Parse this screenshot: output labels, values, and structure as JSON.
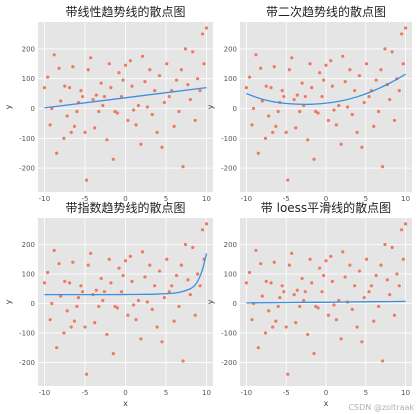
{
  "style": {
    "point_color": "#f07860",
    "trend_color": "#3a8fe0",
    "plot_bg": "#e5e5e5",
    "grid_color": "#ffffff"
  },
  "watermark": "CSDN @zoltraak",
  "chart_data": [
    {
      "type": "scatter",
      "title": "带线性趋势线的散点图",
      "xlabel": "",
      "ylabel": "y",
      "xlim": [
        -10.8,
        10.8
      ],
      "ylim": [
        -280,
        290
      ],
      "xticks": [
        -10,
        -5,
        0,
        5,
        10
      ],
      "yticks": [
        -200,
        -100,
        0,
        100,
        200
      ],
      "points": [
        [
          -10,
          70
        ],
        [
          -9.6,
          105
        ],
        [
          -9.3,
          -55
        ],
        [
          -9.1,
          0
        ],
        [
          -8.8,
          180
        ],
        [
          -8.5,
          -150
        ],
        [
          -8.2,
          135
        ],
        [
          -8,
          25
        ],
        [
          -7.6,
          -100
        ],
        [
          -7.5,
          75
        ],
        [
          -7.2,
          -25
        ],
        [
          -6.9,
          70
        ],
        [
          -6.7,
          -80
        ],
        [
          -6.5,
          140
        ],
        [
          -6.3,
          -60
        ],
        [
          -6,
          -10
        ],
        [
          -5.8,
          20
        ],
        [
          -5.5,
          60
        ],
        [
          -5.3,
          40
        ],
        [
          -5,
          -80
        ],
        [
          -4.8,
          -240
        ],
        [
          -4.6,
          130
        ],
        [
          -4.3,
          170
        ],
        [
          -4,
          30
        ],
        [
          -3.8,
          -65
        ],
        [
          -3.6,
          45
        ],
        [
          -3.3,
          -10
        ],
        [
          -3,
          85
        ],
        [
          -2.8,
          10
        ],
        [
          -2.6,
          40
        ],
        [
          -2.3,
          -105
        ],
        [
          -2,
          150
        ],
        [
          -1.8,
          70
        ],
        [
          -1.5,
          -170
        ],
        [
          -1.3,
          -10
        ],
        [
          -1,
          -15
        ],
        [
          -0.8,
          120
        ],
        [
          -0.5,
          40
        ],
        [
          -0.3,
          95
        ],
        [
          0,
          145
        ],
        [
          0.3,
          -40
        ],
        [
          0.6,
          160
        ],
        [
          0.8,
          75
        ],
        [
          1,
          -5
        ],
        [
          1.3,
          -55
        ],
        [
          1.6,
          10
        ],
        [
          1.9,
          -120
        ],
        [
          2.1,
          175
        ],
        [
          2.4,
          90
        ],
        [
          2.7,
          5
        ],
        [
          3,
          130
        ],
        [
          3.3,
          -20
        ],
        [
          3.6,
          60
        ],
        [
          3.9,
          -80
        ],
        [
          4.2,
          110
        ],
        [
          4.5,
          -130
        ],
        [
          4.8,
          20
        ],
        [
          5.1,
          150
        ],
        [
          5.4,
          40
        ],
        [
          5.7,
          60
        ],
        [
          6,
          -60
        ],
        [
          6.3,
          95
        ],
        [
          6.6,
          -10
        ],
        [
          6.9,
          130
        ],
        [
          7.1,
          -195
        ],
        [
          7.4,
          200
        ],
        [
          7.7,
          80
        ],
        [
          8,
          30
        ],
        [
          8.3,
          190
        ],
        [
          8.6,
          -40
        ],
        [
          8.9,
          100
        ],
        [
          9.2,
          60
        ],
        [
          9.5,
          250
        ],
        [
          9.7,
          150
        ],
        [
          10,
          270
        ]
      ],
      "trend": {
        "kind": "linear",
        "x": [
          -10,
          10
        ],
        "y": [
          2,
          70
        ]
      }
    },
    {
      "type": "scatter",
      "title": "带二次趋势线的散点图",
      "xlabel": "",
      "ylabel": "y",
      "xlim": [
        -10.8,
        10.8
      ],
      "ylim": [
        -280,
        290
      ],
      "xticks": [
        -10,
        -5,
        0,
        5,
        10
      ],
      "yticks": [
        -200,
        -100,
        0,
        100,
        200
      ],
      "points": [
        [
          -10,
          70
        ],
        [
          -9.6,
          105
        ],
        [
          -9.3,
          -55
        ],
        [
          -9.1,
          0
        ],
        [
          -8.8,
          180
        ],
        [
          -8.5,
          -150
        ],
        [
          -8.2,
          135
        ],
        [
          -8,
          25
        ],
        [
          -7.6,
          -100
        ],
        [
          -7.5,
          75
        ],
        [
          -7.2,
          -25
        ],
        [
          -6.9,
          70
        ],
        [
          -6.7,
          -80
        ],
        [
          -6.5,
          140
        ],
        [
          -6.3,
          -60
        ],
        [
          -6,
          -10
        ],
        [
          -5.8,
          20
        ],
        [
          -5.5,
          60
        ],
        [
          -5.3,
          40
        ],
        [
          -5,
          -80
        ],
        [
          -4.8,
          -240
        ],
        [
          -4.6,
          130
        ],
        [
          -4.3,
          170
        ],
        [
          -4,
          30
        ],
        [
          -3.8,
          -65
        ],
        [
          -3.6,
          45
        ],
        [
          -3.3,
          -10
        ],
        [
          -3,
          85
        ],
        [
          -2.8,
          10
        ],
        [
          -2.6,
          40
        ],
        [
          -2.3,
          -105
        ],
        [
          -2,
          150
        ],
        [
          -1.8,
          70
        ],
        [
          -1.5,
          -170
        ],
        [
          -1.3,
          -10
        ],
        [
          -1,
          -15
        ],
        [
          -0.8,
          120
        ],
        [
          -0.5,
          40
        ],
        [
          -0.3,
          95
        ],
        [
          0,
          145
        ],
        [
          0.3,
          -40
        ],
        [
          0.6,
          160
        ],
        [
          0.8,
          75
        ],
        [
          1,
          -5
        ],
        [
          1.3,
          -55
        ],
        [
          1.6,
          10
        ],
        [
          1.9,
          -120
        ],
        [
          2.1,
          175
        ],
        [
          2.4,
          90
        ],
        [
          2.7,
          5
        ],
        [
          3,
          130
        ],
        [
          3.3,
          -20
        ],
        [
          3.6,
          60
        ],
        [
          3.9,
          -80
        ],
        [
          4.2,
          110
        ],
        [
          4.5,
          -130
        ],
        [
          4.8,
          20
        ],
        [
          5.1,
          150
        ],
        [
          5.4,
          40
        ],
        [
          5.7,
          60
        ],
        [
          6,
          -60
        ],
        [
          6.3,
          95
        ],
        [
          6.6,
          -10
        ],
        [
          6.9,
          130
        ],
        [
          7.1,
          -195
        ],
        [
          7.4,
          200
        ],
        [
          7.7,
          80
        ],
        [
          8,
          30
        ],
        [
          8.3,
          190
        ],
        [
          8.6,
          -40
        ],
        [
          8.9,
          100
        ],
        [
          9.2,
          60
        ],
        [
          9.5,
          250
        ],
        [
          9.7,
          150
        ],
        [
          10,
          270
        ]
      ],
      "trend": {
        "kind": "quadratic",
        "x": [
          -10,
          -8,
          -6,
          -4,
          -2,
          0,
          2,
          4,
          6,
          8,
          10
        ],
        "y": [
          50,
          31,
          20,
          15,
          14,
          18,
          26,
          40,
          60,
          85,
          115
        ]
      }
    },
    {
      "type": "scatter",
      "title": "带指数趋势线的散点图",
      "xlabel": "x",
      "ylabel": "y",
      "xlim": [
        -10.8,
        10.8
      ],
      "ylim": [
        -280,
        290
      ],
      "xticks": [
        -10,
        -5,
        0,
        5,
        10
      ],
      "yticks": [
        -200,
        -100,
        0,
        100,
        200
      ],
      "points": [
        [
          -10,
          70
        ],
        [
          -9.6,
          105
        ],
        [
          -9.3,
          -55
        ],
        [
          -9.1,
          0
        ],
        [
          -8.8,
          180
        ],
        [
          -8.5,
          -150
        ],
        [
          -8.2,
          135
        ],
        [
          -8,
          25
        ],
        [
          -7.6,
          -100
        ],
        [
          -7.5,
          75
        ],
        [
          -7.2,
          -25
        ],
        [
          -6.9,
          70
        ],
        [
          -6.7,
          -80
        ],
        [
          -6.5,
          140
        ],
        [
          -6.3,
          -60
        ],
        [
          -6,
          -10
        ],
        [
          -5.8,
          20
        ],
        [
          -5.5,
          60
        ],
        [
          -5.3,
          40
        ],
        [
          -5,
          -80
        ],
        [
          -4.8,
          -240
        ],
        [
          -4.6,
          130
        ],
        [
          -4.3,
          170
        ],
        [
          -4,
          30
        ],
        [
          -3.8,
          -65
        ],
        [
          -3.6,
          45
        ],
        [
          -3.3,
          -10
        ],
        [
          -3,
          85
        ],
        [
          -2.8,
          10
        ],
        [
          -2.6,
          40
        ],
        [
          -2.3,
          -105
        ],
        [
          -2,
          150
        ],
        [
          -1.8,
          70
        ],
        [
          -1.5,
          -170
        ],
        [
          -1.3,
          -10
        ],
        [
          -1,
          -15
        ],
        [
          -0.8,
          120
        ],
        [
          -0.5,
          40
        ],
        [
          -0.3,
          95
        ],
        [
          0,
          145
        ],
        [
          0.3,
          -40
        ],
        [
          0.6,
          160
        ],
        [
          0.8,
          75
        ],
        [
          1,
          -5
        ],
        [
          1.3,
          -55
        ],
        [
          1.6,
          10
        ],
        [
          1.9,
          -120
        ],
        [
          2.1,
          175
        ],
        [
          2.4,
          90
        ],
        [
          2.7,
          5
        ],
        [
          3,
          130
        ],
        [
          3.3,
          -20
        ],
        [
          3.6,
          60
        ],
        [
          3.9,
          -80
        ],
        [
          4.2,
          110
        ],
        [
          4.5,
          -130
        ],
        [
          4.8,
          20
        ],
        [
          5.1,
          150
        ],
        [
          5.4,
          40
        ],
        [
          5.7,
          60
        ],
        [
          6,
          -60
        ],
        [
          6.3,
          95
        ],
        [
          6.6,
          -10
        ],
        [
          6.9,
          130
        ],
        [
          7.1,
          -195
        ],
        [
          7.4,
          200
        ],
        [
          7.7,
          80
        ],
        [
          8,
          30
        ],
        [
          8.3,
          190
        ],
        [
          8.6,
          -40
        ],
        [
          8.9,
          100
        ],
        [
          9.2,
          60
        ],
        [
          9.5,
          250
        ],
        [
          9.7,
          150
        ],
        [
          10,
          270
        ]
      ],
      "trend": {
        "kind": "exponential",
        "x": [
          -10,
          -6,
          -2,
          2,
          4,
          6,
          7,
          8,
          8.5,
          9,
          9.5,
          10
        ],
        "y": [
          30,
          30,
          30,
          31,
          32,
          35,
          40,
          50,
          60,
          80,
          115,
          170
        ]
      }
    },
    {
      "type": "scatter",
      "title": "带 loess平滑线的散点图",
      "xlabel": "x",
      "ylabel": "y",
      "xlim": [
        -10.8,
        10.8
      ],
      "ylim": [
        -280,
        290
      ],
      "xticks": [
        -10,
        -5,
        0,
        5,
        10
      ],
      "yticks": [
        -200,
        -100,
        0,
        100,
        200
      ],
      "points": [
        [
          -10,
          70
        ],
        [
          -9.6,
          105
        ],
        [
          -9.3,
          -55
        ],
        [
          -9.1,
          0
        ],
        [
          -8.8,
          180
        ],
        [
          -8.5,
          -150
        ],
        [
          -8.2,
          135
        ],
        [
          -8,
          25
        ],
        [
          -7.6,
          -100
        ],
        [
          -7.5,
          75
        ],
        [
          -7.2,
          -25
        ],
        [
          -6.9,
          70
        ],
        [
          -6.7,
          -80
        ],
        [
          -6.5,
          140
        ],
        [
          -6.3,
          -60
        ],
        [
          -6,
          -10
        ],
        [
          -5.8,
          20
        ],
        [
          -5.5,
          60
        ],
        [
          -5.3,
          40
        ],
        [
          -5,
          -80
        ],
        [
          -4.8,
          -240
        ],
        [
          -4.6,
          130
        ],
        [
          -4.3,
          170
        ],
        [
          -4,
          30
        ],
        [
          -3.8,
          -65
        ],
        [
          -3.6,
          45
        ],
        [
          -3.3,
          -10
        ],
        [
          -3,
          85
        ],
        [
          -2.8,
          10
        ],
        [
          -2.6,
          40
        ],
        [
          -2.3,
          -105
        ],
        [
          -2,
          150
        ],
        [
          -1.8,
          70
        ],
        [
          -1.5,
          -170
        ],
        [
          -1.3,
          -10
        ],
        [
          -1,
          -15
        ],
        [
          -0.8,
          120
        ],
        [
          -0.5,
          40
        ],
        [
          -0.3,
          95
        ],
        [
          0,
          145
        ],
        [
          0.3,
          -40
        ],
        [
          0.6,
          160
        ],
        [
          0.8,
          75
        ],
        [
          1,
          -5
        ],
        [
          1.3,
          -55
        ],
        [
          1.6,
          10
        ],
        [
          1.9,
          -120
        ],
        [
          2.1,
          175
        ],
        [
          2.4,
          90
        ],
        [
          2.7,
          5
        ],
        [
          3,
          130
        ],
        [
          3.3,
          -20
        ],
        [
          3.6,
          60
        ],
        [
          3.9,
          -80
        ],
        [
          4.2,
          110
        ],
        [
          4.5,
          -130
        ],
        [
          4.8,
          20
        ],
        [
          5.1,
          150
        ],
        [
          5.4,
          40
        ],
        [
          5.7,
          60
        ],
        [
          6,
          -60
        ],
        [
          6.3,
          95
        ],
        [
          6.6,
          -10
        ],
        [
          6.9,
          130
        ],
        [
          7.1,
          -195
        ],
        [
          7.4,
          200
        ],
        [
          7.7,
          80
        ],
        [
          8,
          30
        ],
        [
          8.3,
          190
        ],
        [
          8.6,
          -40
        ],
        [
          8.9,
          100
        ],
        [
          9.2,
          60
        ],
        [
          9.5,
          250
        ],
        [
          9.7,
          150
        ],
        [
          10,
          270
        ]
      ],
      "trend": {
        "kind": "loess",
        "x": [
          -10,
          -6,
          -2,
          0,
          2,
          6,
          10
        ],
        "y": [
          2,
          3,
          4,
          4,
          5,
          6,
          7
        ]
      }
    }
  ]
}
